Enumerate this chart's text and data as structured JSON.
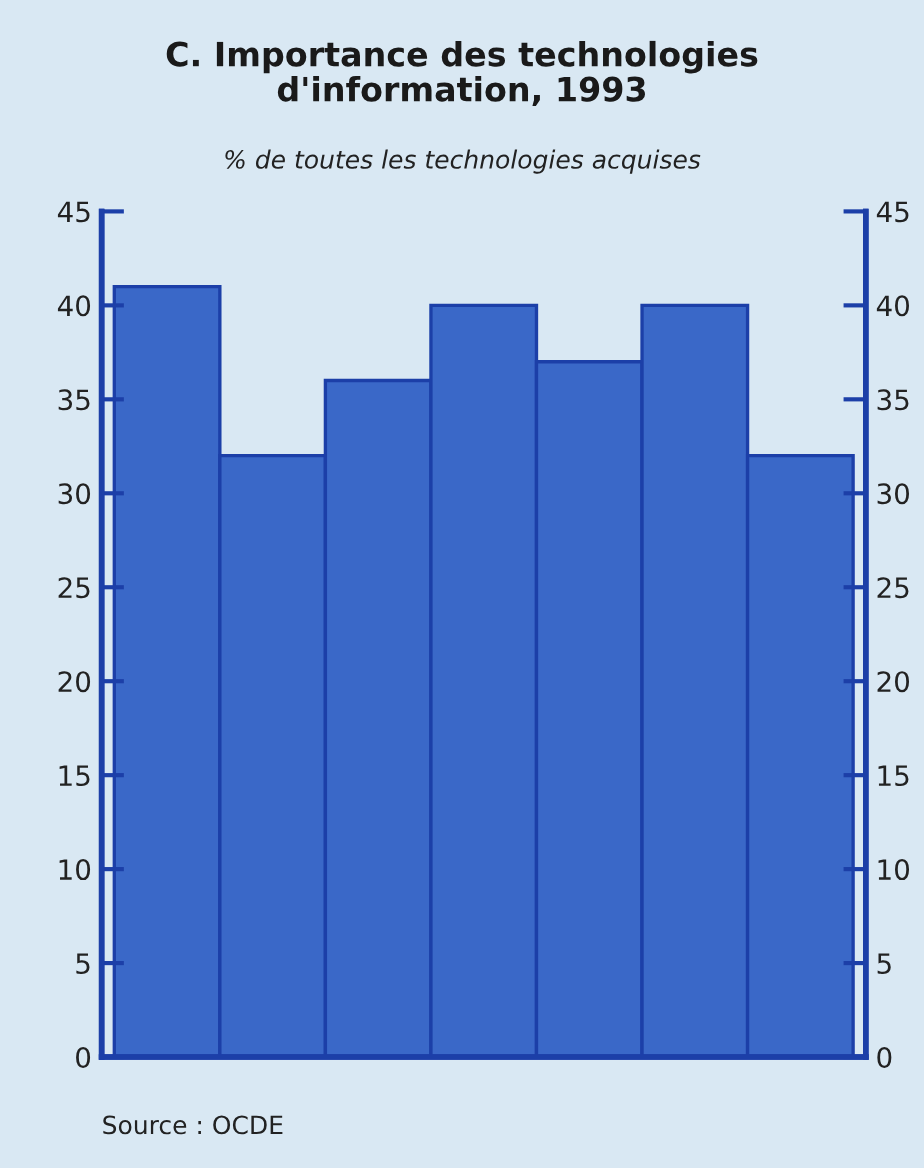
{
  "chart_data": {
    "type": "bar",
    "title": "C. Importance des technologies\nd'information, 1993",
    "subtitle": "% de toutes les technologies acquises",
    "categories": [
      null,
      null,
      null,
      null,
      null,
      null,
      null
    ],
    "values": [
      41,
      32,
      36,
      40,
      37,
      40,
      32
    ],
    "color": "#3a68c8",
    "ylim": [
      0,
      45
    ],
    "yticks": [
      0,
      5,
      10,
      15,
      20,
      25,
      30,
      35,
      40,
      45
    ],
    "y2lim": [
      0,
      45
    ],
    "y2ticks": [
      0,
      5,
      10,
      15,
      20,
      25,
      30,
      35,
      40,
      45
    ],
    "grid": false,
    "legend": false,
    "annotations": [
      "Source : OCDE"
    ]
  }
}
